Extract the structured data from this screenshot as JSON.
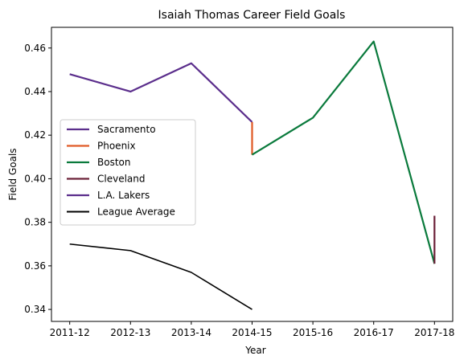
{
  "chart_data": {
    "type": "line",
    "title": "Isaiah Thomas  Career Field Goals",
    "xlabel": "Year",
    "ylabel": "Field Goals",
    "categories": [
      "2011-12",
      "2012-13",
      "2013-14",
      "2014-15",
      "2015-16",
      "2016-17",
      "2017-18"
    ],
    "ylim": [
      0.3345,
      0.4695
    ],
    "yticks": [
      "0.34",
      "0.36",
      "0.38",
      "0.40",
      "0.42",
      "0.44",
      "0.46"
    ],
    "grid": false,
    "legend_position": "center-left",
    "series": [
      {
        "name": "Sacramento",
        "color": "#5b2e8c",
        "points": [
          [
            "2011-12",
            0.448
          ],
          [
            "2012-13",
            0.44
          ],
          [
            "2013-14",
            0.453
          ],
          [
            "2014-15",
            0.426
          ]
        ]
      },
      {
        "name": "Phoenix",
        "color": "#e05a26",
        "points": [
          [
            "2014-15",
            0.426
          ],
          [
            "2014-15",
            0.411
          ]
        ]
      },
      {
        "name": "Boston",
        "color": "#0a7a3c",
        "points": [
          [
            "2014-15",
            0.411
          ],
          [
            "2015-16",
            0.428
          ],
          [
            "2016-17",
            0.463
          ],
          [
            "2017-18",
            0.361
          ]
        ]
      },
      {
        "name": "Cleveland",
        "color": "#6b2038",
        "points": [
          [
            "2017-18",
            0.361
          ],
          [
            "2017-18",
            0.383
          ]
        ]
      },
      {
        "name": "L.A. Lakers",
        "color": "#5b2e8c",
        "points": [
          [
            "2017-18",
            0.383
          ],
          [
            "2017-18",
            0.383
          ]
        ]
      },
      {
        "name": "League Average",
        "color": "#000000",
        "points": [
          [
            "2011-12",
            0.37
          ],
          [
            "2012-13",
            0.367
          ],
          [
            "2013-14",
            0.357
          ],
          [
            "2014-15",
            0.34
          ]
        ]
      }
    ]
  }
}
